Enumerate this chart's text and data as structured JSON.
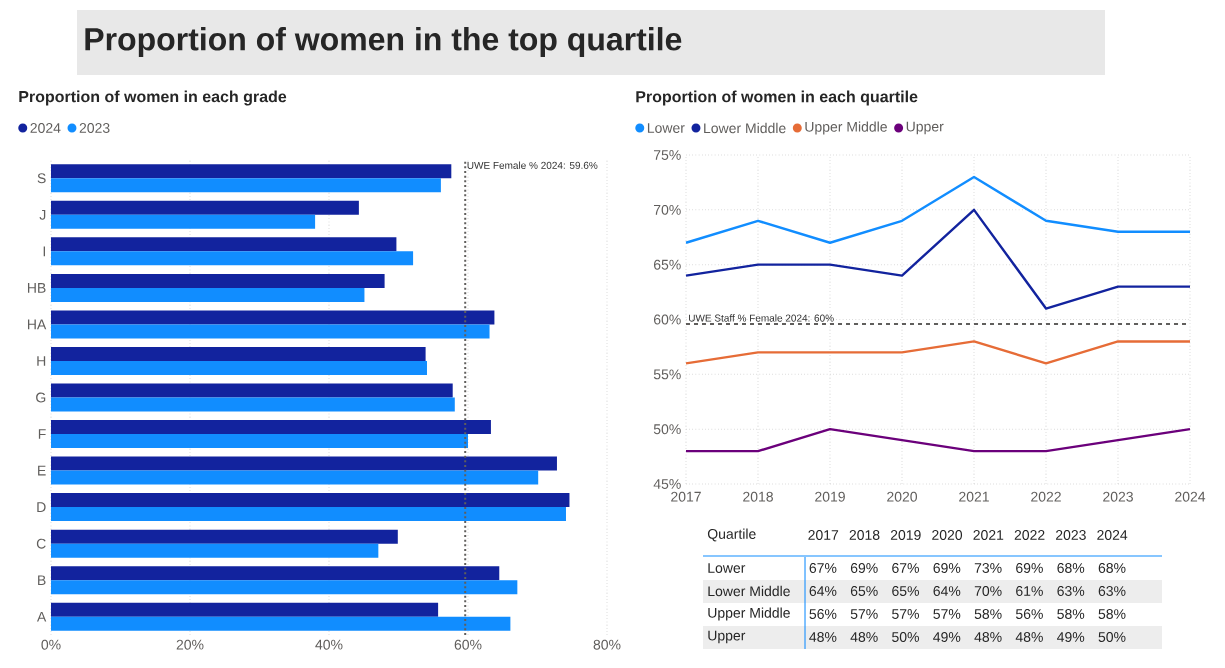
{
  "chart_data": [
    {
      "type": "bar",
      "orientation": "horizontal",
      "title": "Proportion of women in each grade",
      "annotations": [
        "Proportion of women in the top quartile"
      ],
      "categories": [
        "S",
        "J",
        "I",
        "HB",
        "HA",
        "H",
        "G",
        "F",
        "E",
        "D",
        "C",
        "B",
        "A"
      ],
      "series": [
        {
          "name": "2024",
          "color": "#12239e",
          "values": [
            57.6,
            44.3,
            49.7,
            48.0,
            63.8,
            53.9,
            57.8,
            63.3,
            72.8,
            74.6,
            49.9,
            64.5,
            55.7
          ]
        },
        {
          "name": "2023",
          "color": "#118dff",
          "values": [
            56.1,
            38.0,
            52.1,
            45.1,
            63.1,
            54.1,
            58.1,
            60.0,
            70.1,
            74.1,
            47.1,
            67.1,
            66.1
          ]
        }
      ],
      "xlim": [
        0,
        80
      ],
      "xticks": [
        {
          "value": 0,
          "label": "0%"
        },
        {
          "value": 20,
          "label": "20%"
        },
        {
          "value": 40,
          "label": "40%"
        },
        {
          "value": 60,
          "label": "60%"
        },
        {
          "value": 80,
          "label": "80%"
        }
      ],
      "grid": "x",
      "legend": "top left",
      "ref_lines": [
        {
          "axis": "x",
          "value": 59.6,
          "label": "UWE Female % 2024: 59.6%",
          "color": "#605e5c",
          "line_style": "dotted"
        }
      ]
    },
    {
      "type": "line",
      "title": "Proportion of women in each quartile",
      "x": [
        2017,
        2018,
        2019,
        2020,
        2021,
        2022,
        2023,
        2024
      ],
      "series": [
        {
          "name": "Lower",
          "color": "#118dff",
          "values": [
            67,
            69,
            67,
            69,
            73,
            69,
            68,
            68
          ]
        },
        {
          "name": "Lower Middle",
          "color": "#12239e",
          "values": [
            64,
            65,
            65,
            64,
            70,
            61,
            63,
            63
          ]
        },
        {
          "name": "Upper Middle",
          "color": "#e66c37",
          "values": [
            56,
            57,
            57,
            57,
            58,
            56,
            58,
            58
          ]
        },
        {
          "name": "Upper",
          "color": "#6b007b",
          "values": [
            48,
            48,
            50,
            49,
            48,
            48,
            49,
            50
          ]
        }
      ],
      "xlim": [
        2017,
        2024
      ],
      "xticks": [
        2017,
        2018,
        2019,
        2020,
        2021,
        2022,
        2023,
        2024
      ],
      "ylim": [
        45,
        75
      ],
      "yticks": [
        {
          "value": 45,
          "label": "45%"
        },
        {
          "value": 50,
          "label": "50%"
        },
        {
          "value": 55,
          "label": "55%"
        },
        {
          "value": 60,
          "label": "60%"
        },
        {
          "value": 65,
          "label": "65%"
        },
        {
          "value": 70,
          "label": "70%"
        },
        {
          "value": 75,
          "label": "75%"
        }
      ],
      "grid": true,
      "legend": "top left",
      "ref_lines": [
        {
          "axis": "y",
          "value": 59.6,
          "label": "UWE Staff % Female 2024: 60%",
          "color": "#605e5c",
          "line_style": "dashed"
        }
      ]
    },
    {
      "type": "other",
      "annotations": [
        "Quartile",
        "2017 2018 2019 2020 2021 2022 2023 2024",
        "Lower",
        "67%",
        "69%",
        "67%",
        "69%",
        "73%",
        "69%",
        "68%",
        "68%",
        "Lower Middle",
        "64%",
        "65%",
        "65%",
        "64%",
        "70%",
        "61%",
        "63%",
        "63%",
        "Upper Middle",
        "56%",
        "57%",
        "57%",
        "57%",
        "58%",
        "56%",
        "58%",
        "58%",
        "Upper",
        "48%",
        "48%",
        "50%",
        "49%",
        "48%",
        "48%",
        "49%",
        "50%"
      ]
    }
  ]
}
